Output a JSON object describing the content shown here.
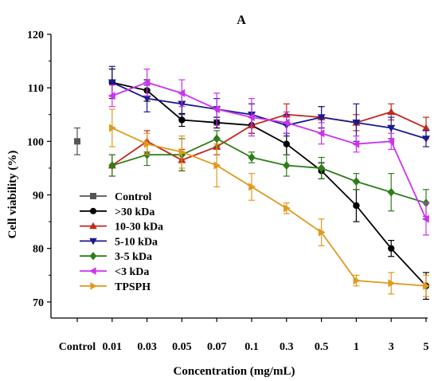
{
  "chart_data": {
    "type": "line",
    "title": "A",
    "xlabel": "Concentration (mg/mL)",
    "ylabel": "Cell viability (%)",
    "ylim": [
      67,
      120
    ],
    "yticks": [
      70,
      80,
      90,
      100,
      110,
      120
    ],
    "x_tick_labels": [
      "Control",
      "0.01",
      "0.03",
      "0.05",
      "0.07",
      "0.1",
      "0.3",
      "0.5",
      "1",
      "3",
      "5"
    ],
    "categories": [
      "0.01",
      "0.03",
      "0.05",
      "0.07",
      "0.1",
      "0.3",
      "0.5",
      "1",
      "3",
      "5"
    ],
    "legend_position": "left",
    "grid": false,
    "control": {
      "name": "Control",
      "category": "Control",
      "value": 100,
      "error": 2.5,
      "color": "#555555",
      "marker": "square"
    },
    "series": [
      {
        "name": ">30 kDa",
        "color": "#000000",
        "marker": "circle",
        "values": [
          111,
          109.5,
          104,
          103.5,
          103,
          99.5,
          94.5,
          88,
          80,
          73
        ],
        "errors": [
          2.5,
          2,
          1.2,
          1,
          1.5,
          2,
          1.5,
          3,
          1.5,
          2.5
        ]
      },
      {
        "name": "10-30 kDa",
        "color": "#c0281c",
        "marker": "triangle-up",
        "values": [
          95.5,
          100,
          96.5,
          99,
          103,
          105,
          104.5,
          103.5,
          105.5,
          102.5
        ],
        "errors": [
          2,
          2,
          2,
          1.5,
          1.5,
          2,
          2,
          1.5,
          1.5,
          2
        ]
      },
      {
        "name": "5-10 kDa",
        "color": "#1a1a8c",
        "marker": "triangle-down",
        "values": [
          111,
          108,
          107,
          106,
          105,
          103,
          104.5,
          103.5,
          102.5,
          100.5
        ],
        "errors": [
          3,
          2.5,
          2,
          2,
          2,
          2,
          2,
          3.5,
          2,
          1.5
        ]
      },
      {
        "name": "3-5 kDa",
        "color": "#2e7d1a",
        "marker": "diamond",
        "values": [
          95.5,
          97.5,
          97.5,
          100.5,
          97,
          95.5,
          95,
          92.5,
          90.5,
          88.5
        ],
        "errors": [
          2,
          2,
          3,
          1.5,
          1,
          2,
          2,
          1.5,
          3.5,
          2.5
        ]
      },
      {
        "name": "<3 kDa",
        "color": "#cc33ee",
        "marker": "triangle-left",
        "values": [
          108.5,
          111,
          109,
          106,
          104.5,
          103.5,
          101.5,
          99.5,
          100,
          85.5
        ],
        "errors": [
          2,
          2.5,
          2.5,
          3,
          3.5,
          2,
          2,
          1.5,
          1.5,
          3
        ]
      },
      {
        "name": "TPSPH",
        "color": "#e09a1e",
        "marker": "triangle-right",
        "values": [
          102.5,
          99.5,
          98,
          95.5,
          91.5,
          87.5,
          83,
          74,
          73.5,
          73
        ],
        "errors": [
          3.5,
          2,
          3,
          4,
          2.5,
          1,
          2.5,
          1,
          2,
          2
        ]
      }
    ]
  }
}
